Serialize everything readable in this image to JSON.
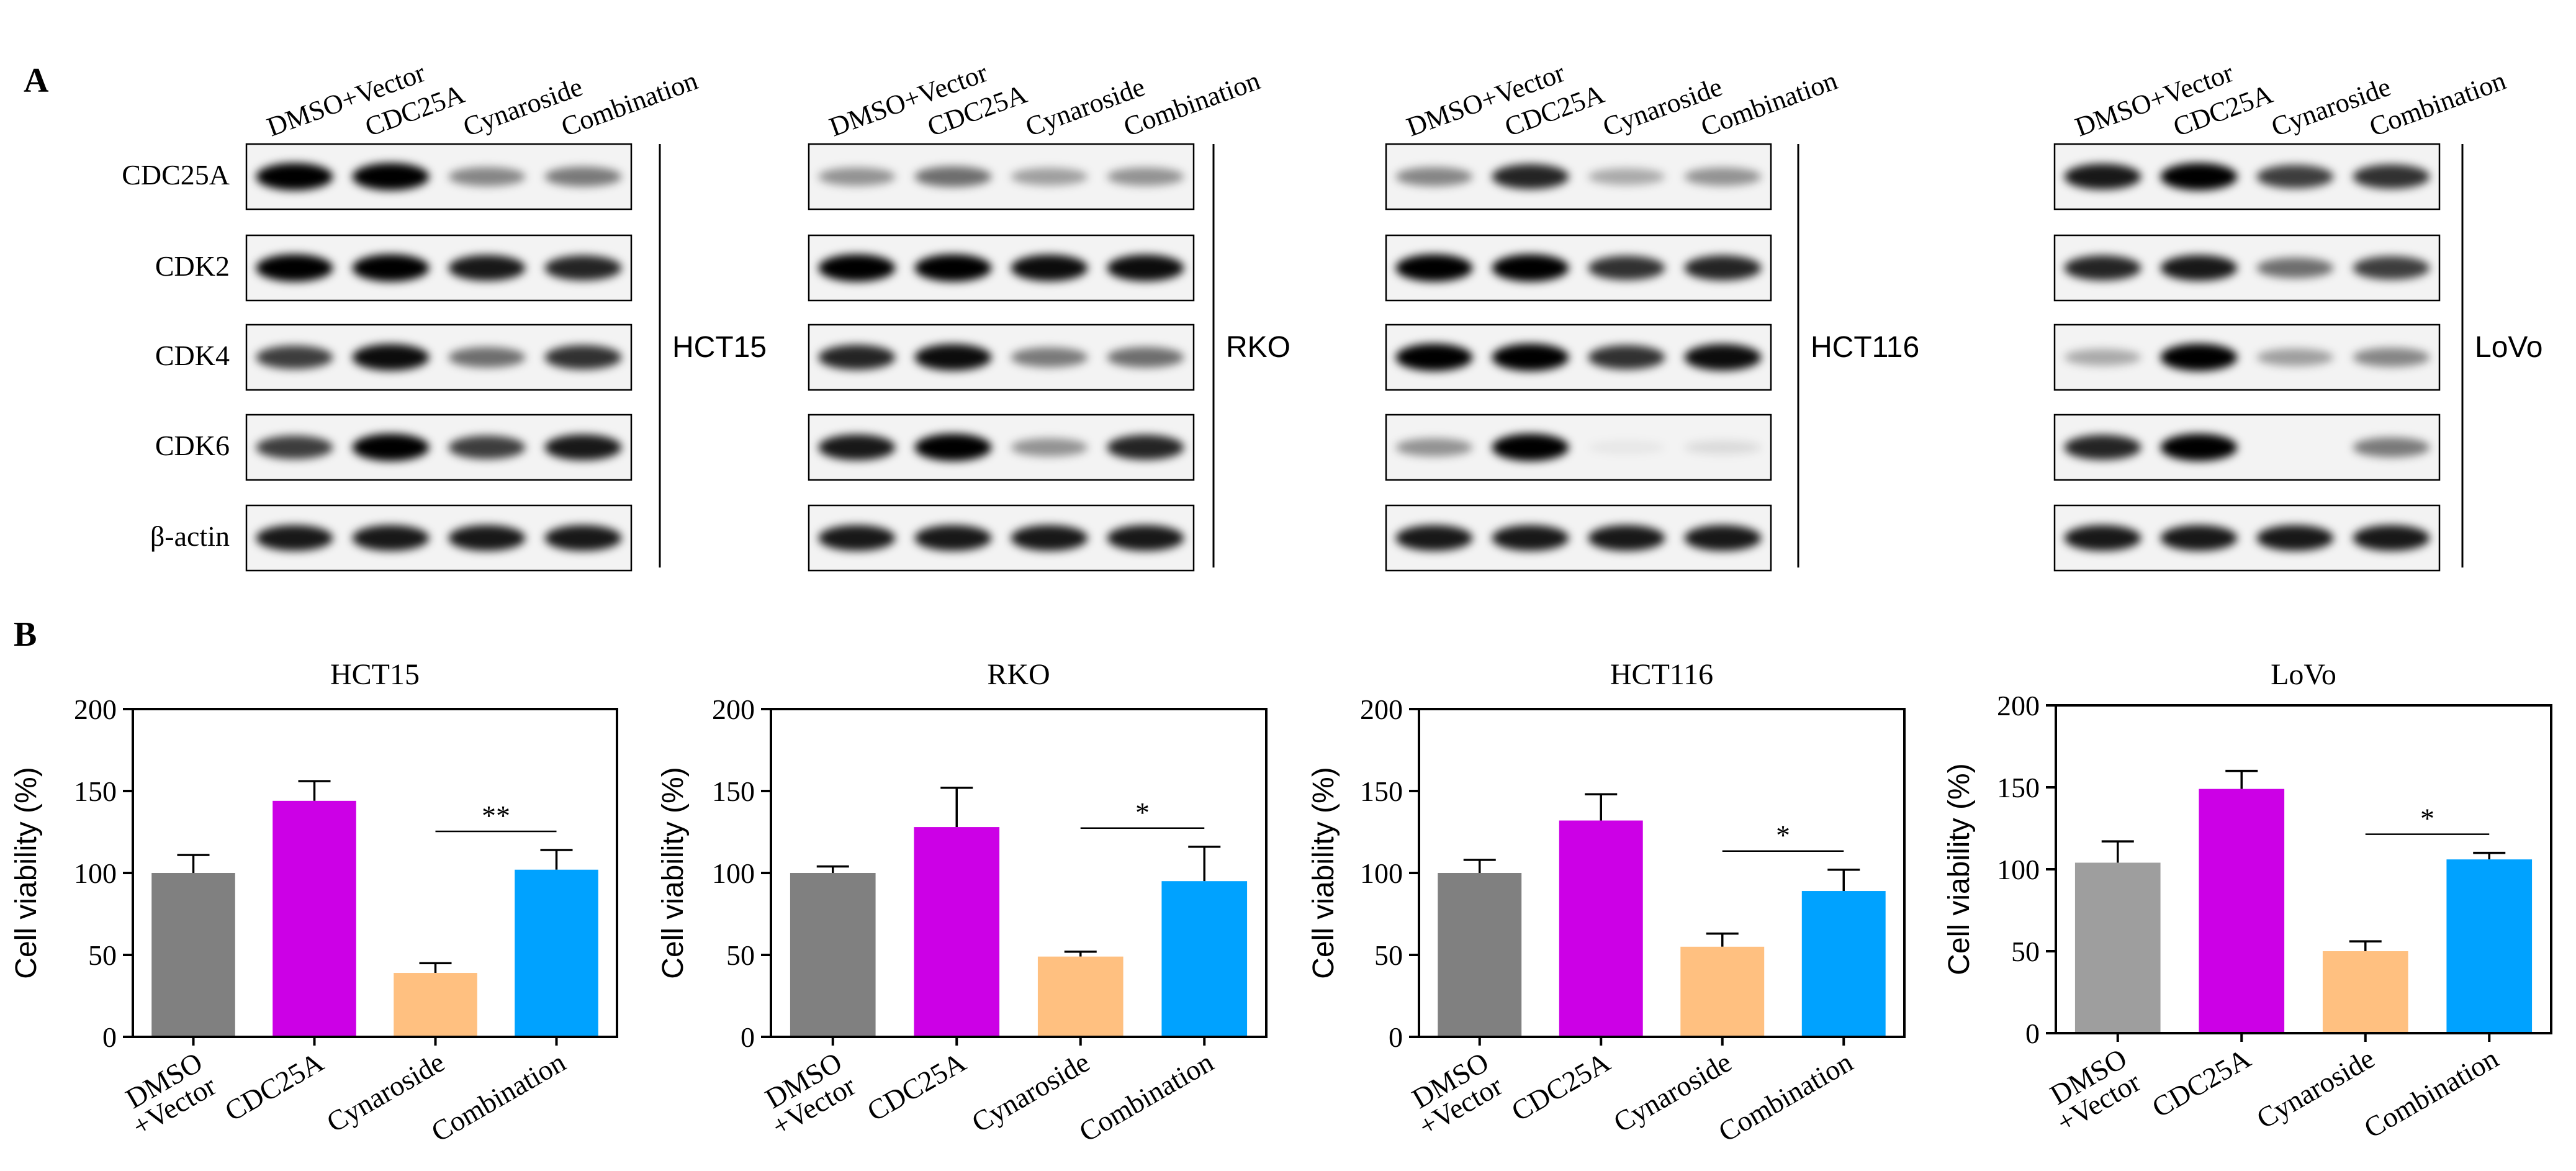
{
  "panels": {
    "a_label": "A",
    "b_label": "B"
  },
  "western_blot": {
    "lane_labels": [
      "DMSO+Vector",
      "CDC25A",
      "Cynaroside",
      "Combination"
    ],
    "proteins": [
      "CDC25A",
      "CDK2",
      "CDK4",
      "CDK6",
      "β-actin"
    ],
    "cell_lines": [
      "HCT15",
      "RKO",
      "HCT116",
      "LoVo"
    ],
    "band_intensity": [
      [
        [
          1.0,
          1.0,
          0.45,
          0.5
        ],
        [
          1.0,
          1.0,
          0.9,
          0.85
        ],
        [
          0.75,
          0.95,
          0.55,
          0.8
        ],
        [
          0.75,
          1.0,
          0.75,
          0.9
        ],
        [
          0.9,
          0.9,
          0.9,
          0.9
        ]
      ],
      [
        [
          0.4,
          0.55,
          0.35,
          0.4
        ],
        [
          1.0,
          1.0,
          0.95,
          0.95
        ],
        [
          0.85,
          0.95,
          0.5,
          0.55
        ],
        [
          0.9,
          1.0,
          0.4,
          0.85
        ],
        [
          0.9,
          0.9,
          0.9,
          0.9
        ]
      ],
      [
        [
          0.45,
          0.85,
          0.3,
          0.4
        ],
        [
          1.0,
          1.0,
          0.8,
          0.85
        ],
        [
          1.0,
          1.0,
          0.8,
          0.95
        ],
        [
          0.4,
          1.0,
          0.05,
          0.1
        ],
        [
          0.9,
          0.9,
          0.9,
          0.9
        ]
      ],
      [
        [
          0.9,
          1.0,
          0.75,
          0.8
        ],
        [
          0.85,
          0.9,
          0.55,
          0.75
        ],
        [
          0.3,
          1.0,
          0.35,
          0.45
        ],
        [
          0.85,
          1.0,
          0.0,
          0.5
        ],
        [
          0.9,
          0.9,
          0.9,
          0.9
        ]
      ]
    ]
  },
  "chart_data": [
    {
      "type": "bar",
      "title": "HCT15",
      "xlabel": "",
      "ylabel": "Cell viability (%)",
      "ylim": [
        0,
        200
      ],
      "yticks": [
        "0",
        "50",
        "100",
        "150",
        "200"
      ],
      "categories": [
        "DMSO\n+Vector",
        "CDC25A",
        "Cynaroside",
        "Combination"
      ],
      "values": [
        100,
        144,
        39,
        102
      ],
      "errors": [
        11,
        12,
        6,
        12
      ],
      "colors": [
        "#808080",
        "#cc00e6",
        "#ffc080",
        "#00a2ff"
      ],
      "significance": {
        "from": 2,
        "to": 3,
        "label": "**"
      }
    },
    {
      "type": "bar",
      "title": "RKO",
      "xlabel": "",
      "ylabel": "Cell viability (%)",
      "ylim": [
        0,
        200
      ],
      "yticks": [
        "0",
        "50",
        "100",
        "150",
        "200"
      ],
      "categories": [
        "DMSO\n+Vector",
        "CDC25A",
        "Cynaroside",
        "Combination"
      ],
      "values": [
        100,
        128,
        49,
        95
      ],
      "errors": [
        4,
        24,
        3,
        21
      ],
      "colors": [
        "#808080",
        "#cc00e6",
        "#ffc080",
        "#00a2ff"
      ],
      "significance": {
        "from": 2,
        "to": 3,
        "label": "*"
      }
    },
    {
      "type": "bar",
      "title": "HCT116",
      "xlabel": "",
      "ylabel": "Cell viability (%)",
      "ylim": [
        0,
        200
      ],
      "yticks": [
        "0",
        "50",
        "100",
        "150",
        "200"
      ],
      "categories": [
        "DMSO\n+Vector",
        "CDC25A",
        "Cynaroside",
        "Combination"
      ],
      "values": [
        100,
        132,
        55,
        89
      ],
      "errors": [
        8,
        16,
        8,
        13
      ],
      "colors": [
        "#808080",
        "#cc00e6",
        "#ffc080",
        "#00a2ff"
      ],
      "significance": {
        "from": 2,
        "to": 3,
        "label": "*"
      }
    },
    {
      "type": "bar",
      "title": "LoVo",
      "xlabel": "",
      "ylabel": "Cell viability (%)",
      "ylim": [
        0,
        200
      ],
      "yticks": [
        "0",
        "50",
        "100",
        "150",
        "200"
      ],
      "categories": [
        "DMSO\n+Vector",
        "CDC25A",
        "Cynaroside",
        "Combination"
      ],
      "values": [
        104,
        149,
        50,
        106
      ],
      "errors": [
        13,
        11,
        6,
        4
      ],
      "colors": [
        "#9e9e9e",
        "#cc00e6",
        "#ffc080",
        "#00a2ff"
      ],
      "significance": {
        "from": 2,
        "to": 3,
        "label": "*"
      }
    }
  ]
}
